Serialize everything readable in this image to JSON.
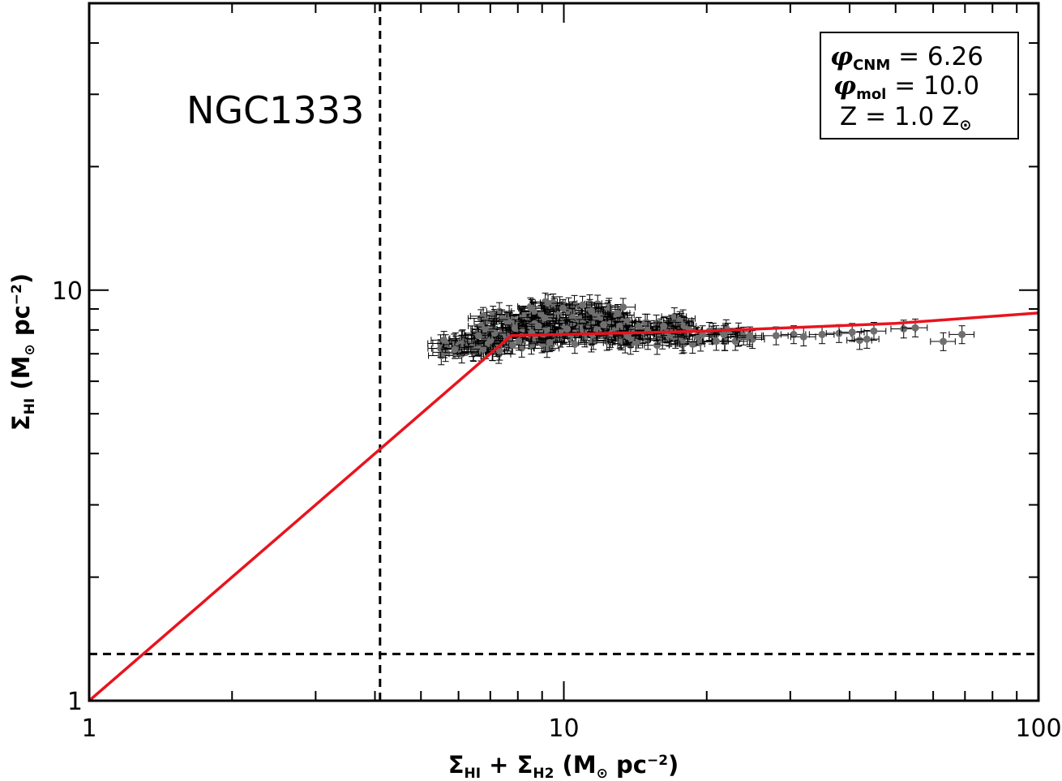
{
  "chart_data": {
    "type": "scatter",
    "title": "",
    "xscale": "log",
    "yscale": "log",
    "xlim": [
      1,
      100
    ],
    "ylim": [
      1,
      50
    ],
    "grid": false,
    "xlabel": {
      "sigma1": "Σ",
      "sub1": "HI",
      "plus": " + ",
      "sigma2": "Σ",
      "sub2": "H2",
      "unit_open": " (M",
      "sun": "⊙",
      "unit_mid": " pc",
      "exp": "−2",
      "unit_close": ")"
    },
    "ylabel": {
      "sigma1": "Σ",
      "sub1": "HI",
      "unit_open": " (M",
      "sun": "⊙",
      "unit_mid": " pc",
      "exp": "−2",
      "unit_close": ")"
    },
    "x_tick_labels": [
      {
        "value": 1,
        "label": "1"
      },
      {
        "value": 10,
        "label": "10"
      },
      {
        "value": 100,
        "label": "100"
      }
    ],
    "y_tick_labels": [
      {
        "value": 1,
        "label": "1"
      },
      {
        "value": 10,
        "label": "10"
      }
    ],
    "annotation": "NGC1333",
    "legend": {
      "placement": "top-right",
      "lines": [
        {
          "sym": "φ",
          "sub": "CNM",
          "text": " = 6.26"
        },
        {
          "sym": "φ",
          "sub": "mol",
          "text": " = 10.0"
        },
        {
          "sym": "Z",
          "sub": "",
          "text": " = 1.0 Z",
          "sun": "⊙"
        }
      ]
    },
    "reference_lines": {
      "vertical_x": 4.1,
      "horizontal_y": 1.3,
      "style": "dashed",
      "color": "#000000"
    },
    "model_curve": {
      "color": "#e8141e",
      "x": [
        1,
        7.75,
        10,
        20,
        50,
        100
      ],
      "y": [
        1,
        7.75,
        7.8,
        7.95,
        8.3,
        8.8
      ]
    },
    "scatter_style": {
      "point_color": "#6f6f6f",
      "errorbar_color": "#000000",
      "x_error_fraction": 0.06,
      "y_error_fraction": 0.05
    },
    "cloud_regions": [
      {
        "x_range": [
          5.5,
          7.5
        ],
        "y_center": 7.3,
        "y_spread": 0.55,
        "count": 45
      },
      {
        "x_range": [
          6.5,
          9.5
        ],
        "y_center": 8.0,
        "y_spread": 0.9,
        "count": 90
      },
      {
        "x_range": [
          8.5,
          13.5
        ],
        "y_center": 8.35,
        "y_spread": 1.1,
        "count": 150
      },
      {
        "x_range": [
          13.5,
          18.0
        ],
        "y_center": 8.0,
        "y_spread": 0.75,
        "count": 60
      },
      {
        "x_range": [
          18.0,
          26.0
        ],
        "y_center": 7.7,
        "y_spread": 0.4,
        "count": 28
      }
    ],
    "points": [
      {
        "x": 28.0,
        "y": 7.75
      },
      {
        "x": 30.5,
        "y": 7.8
      },
      {
        "x": 32.0,
        "y": 7.7
      },
      {
        "x": 35.0,
        "y": 7.8
      },
      {
        "x": 38.0,
        "y": 7.85
      },
      {
        "x": 40.5,
        "y": 7.9
      },
      {
        "x": 42.0,
        "y": 7.55
      },
      {
        "x": 43.5,
        "y": 7.6
      },
      {
        "x": 45.0,
        "y": 7.95
      },
      {
        "x": 52.0,
        "y": 8.05
      },
      {
        "x": 55.0,
        "y": 8.1
      },
      {
        "x": 63.0,
        "y": 7.5
      },
      {
        "x": 69.0,
        "y": 7.8
      }
    ]
  }
}
